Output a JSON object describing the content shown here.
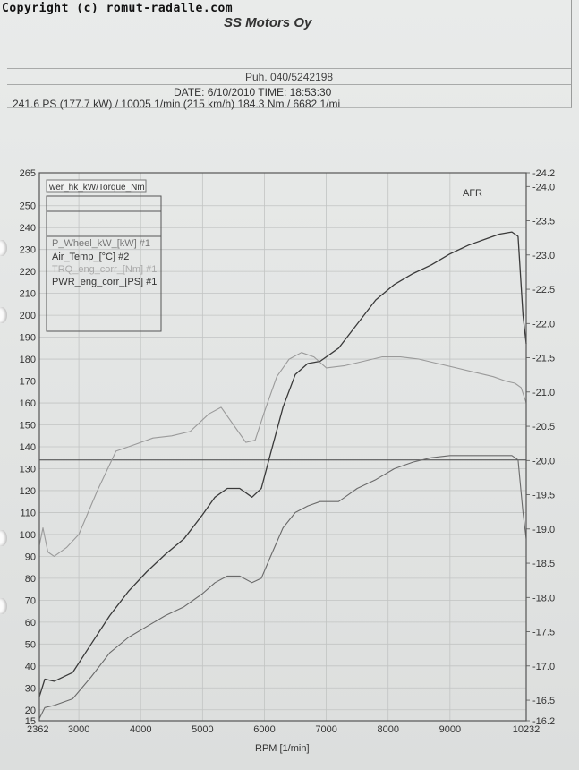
{
  "header": {
    "copyright": "Copyright (c) romut-radalle.com",
    "company": "SS Motors Oy",
    "phone": "Puh. 040/5242198",
    "date_line": "DATE: 6/10/2010  TIME: 18:53:30",
    "summary": "241.6 PS  (177.7 kW) / 10005 1/min (215 km/h)    184.3 Nm / 6682 1/mi"
  },
  "colors": {
    "grid": "#c2c4c3",
    "frame": "#555555",
    "pwr_curve": "#3a3a3a",
    "wheel_curve": "#6a6a6a",
    "torque_curve": "#9a9a9a",
    "ref_line": "#444444"
  },
  "chart_data": {
    "type": "line",
    "title": "",
    "xlabel": "RPM  [1/min]",
    "ylabel": "",
    "y2label": "AFR",
    "xlim": [
      2362,
      10232
    ],
    "ylim": [
      15,
      265
    ],
    "y2lim": [
      16.2,
      24.2
    ],
    "x_ticks": [
      "2362",
      "3000",
      "4000",
      "5000",
      "6000",
      "7000",
      "8000",
      "9000",
      "10232"
    ],
    "y_ticks": [
      "15",
      "20",
      "30",
      "40",
      "50",
      "60",
      "70",
      "80",
      "90",
      "100",
      "110",
      "120",
      "130",
      "140",
      "150",
      "160",
      "170",
      "180",
      "190",
      "200",
      "210",
      "220",
      "230",
      "240",
      "250",
      "265"
    ],
    "y2_ticks": [
      "16.2",
      "16.5",
      "17.0",
      "17.5",
      "18.0",
      "18.5",
      "19.0",
      "19.5",
      "20.0",
      "20.5",
      "21.0",
      "21.5",
      "22.0",
      "22.5",
      "23.0",
      "23.5",
      "24.0",
      "24.2"
    ],
    "grid": true,
    "legend_placement": "top-left",
    "legend_title": "wer_hk_kW/Torque_Nm",
    "legend": [
      "P_Wheel_kW_[kW] #1",
      "Air_Temp_[°C] #2",
      "TRQ_eng_corr_[Nm] #1",
      "PWR_eng_corr_[PS] #1"
    ],
    "reference_line": {
      "name": "Air_Temp_[°C] #2",
      "value": 134
    },
    "series": [
      {
        "name": "PWR_eng_corr_[PS] #1",
        "x": [
          2362,
          2450,
          2600,
          2900,
          3200,
          3500,
          3800,
          4100,
          4400,
          4700,
          5000,
          5200,
          5400,
          5600,
          5800,
          5950,
          6100,
          6300,
          6500,
          6700,
          6900,
          7200,
          7500,
          7800,
          8100,
          8400,
          8700,
          9000,
          9300,
          9600,
          9800,
          10000,
          10100,
          10180,
          10232
        ],
        "values": [
          26,
          34,
          33,
          37,
          50,
          63,
          74,
          83,
          91,
          98,
          109,
          117,
          121,
          121,
          117,
          121,
          137,
          158,
          173,
          178,
          179,
          185,
          196,
          207,
          214,
          219,
          223,
          228,
          232,
          235,
          237,
          238,
          236,
          200,
          187
        ]
      },
      {
        "name": "TRQ_eng_corr_[Nm] #1",
        "x": [
          2362,
          2420,
          2500,
          2600,
          2800,
          3000,
          3300,
          3600,
          3900,
          4200,
          4500,
          4800,
          5100,
          5300,
          5500,
          5700,
          5850,
          6000,
          6200,
          6400,
          6600,
          6800,
          7000,
          7300,
          7600,
          7900,
          8200,
          8500,
          8800,
          9100,
          9400,
          9700,
          9900,
          10050,
          10150,
          10232
        ],
        "values": [
          95,
          103,
          92,
          90,
          94,
          100,
          120,
          138,
          141,
          144,
          145,
          147,
          155,
          158,
          150,
          142,
          143,
          156,
          172,
          180,
          183,
          181,
          176,
          177,
          179,
          181,
          181,
          180,
          178,
          176,
          174,
          172,
          170,
          169,
          167,
          160
        ]
      },
      {
        "name": "P_Wheel_kW_[kW] #1",
        "x": [
          2362,
          2450,
          2600,
          2900,
          3200,
          3500,
          3800,
          4100,
          4400,
          4700,
          5000,
          5200,
          5400,
          5600,
          5800,
          5950,
          6100,
          6300,
          6500,
          6700,
          6900,
          7200,
          7500,
          7800,
          8100,
          8400,
          8700,
          9000,
          9300,
          9600,
          9800,
          10000,
          10100,
          10180,
          10232
        ],
        "values": [
          16,
          21,
          22,
          25,
          35,
          46,
          53,
          58,
          63,
          67,
          73,
          78,
          81,
          81,
          78,
          80,
          90,
          103,
          110,
          113,
          115,
          115,
          121,
          125,
          130,
          133,
          135,
          136,
          136,
          136,
          136,
          136,
          134,
          110,
          98
        ]
      }
    ]
  }
}
